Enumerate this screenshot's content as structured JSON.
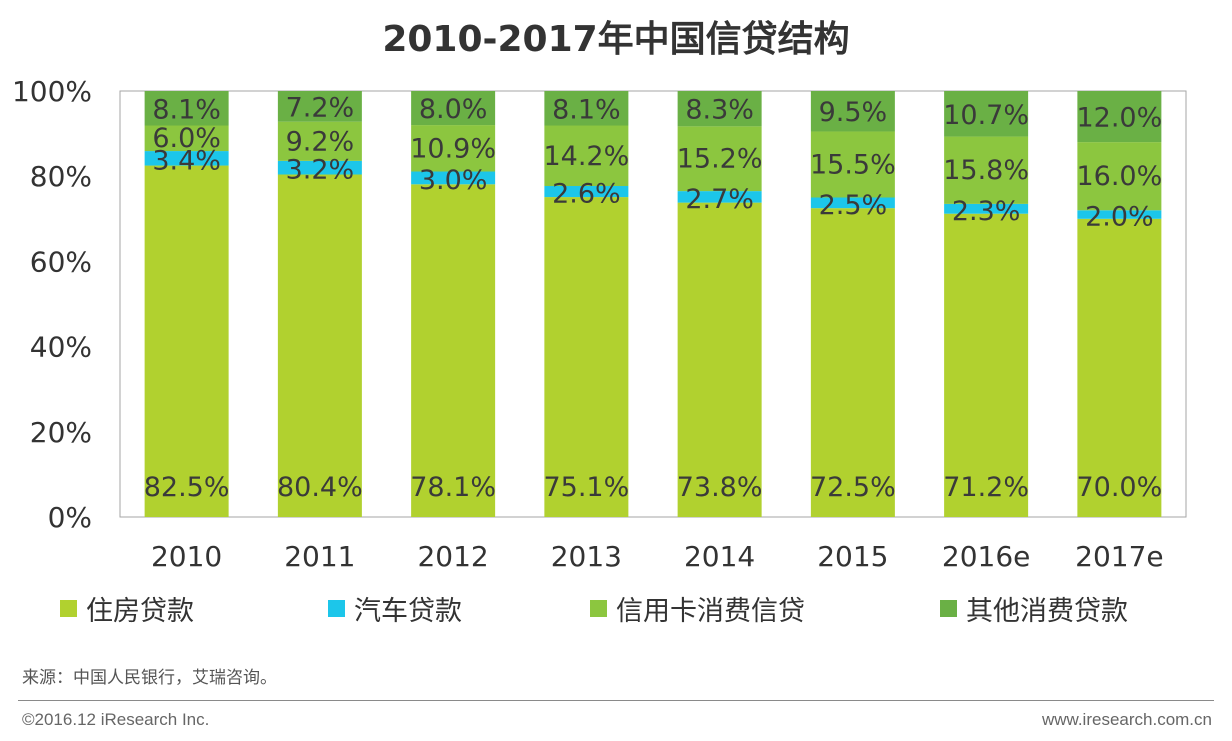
{
  "chart_data": {
    "type": "bar",
    "stacked": true,
    "title": "2010-2017年中国信贷结构",
    "categories": [
      "2010",
      "2011",
      "2012",
      "2013",
      "2014",
      "2015",
      "2016e",
      "2017e"
    ],
    "ylim": [
      0,
      100
    ],
    "y_ticks": [
      "0%",
      "20%",
      "40%",
      "60%",
      "80%",
      "100%"
    ],
    "y_tick_values": [
      0,
      20,
      40,
      60,
      80,
      100
    ],
    "grid": false,
    "legend_position": "bottom",
    "series": [
      {
        "name": "住房贷款",
        "color": "#b1d12f",
        "values": [
          82.5,
          80.4,
          78.1,
          75.1,
          73.8,
          72.5,
          71.2,
          70.0
        ],
        "labels": [
          "82.5%",
          "80.4%",
          "78.1%",
          "75.1%",
          "73.8%",
          "72.5%",
          "71.2%",
          "70.0%"
        ]
      },
      {
        "name": "汽车贷款",
        "color": "#1cc6ea",
        "values": [
          3.4,
          3.2,
          3.0,
          2.6,
          2.7,
          2.5,
          2.3,
          2.0
        ],
        "labels": [
          "3.4%",
          "3.2%",
          "3.0%",
          "2.6%",
          "2.7%",
          "2.5%",
          "2.3%",
          "2.0%"
        ]
      },
      {
        "name": "信用卡消费信贷",
        "color": "#8cc63f",
        "values": [
          6.0,
          9.2,
          10.9,
          14.2,
          15.2,
          15.5,
          15.8,
          16.0
        ],
        "labels": [
          "6.0%",
          "9.2%",
          "10.9%",
          "14.2%",
          "15.2%",
          "15.5%",
          "15.8%",
          "16.0%"
        ]
      },
      {
        "name": "其他消费贷款",
        "color": "#6ab045",
        "values": [
          8.1,
          7.2,
          8.0,
          8.1,
          8.3,
          9.5,
          10.7,
          12.0
        ],
        "labels": [
          "8.1%",
          "7.2%",
          "8.0%",
          "8.1%",
          "8.3%",
          "9.5%",
          "10.7%",
          "12.0%"
        ]
      }
    ]
  },
  "footer": {
    "source": "来源：中国人民银行，艾瑞咨询。",
    "copyright": "©2016.12 iResearch  Inc.",
    "website": "www.iresearch.com.cn"
  }
}
